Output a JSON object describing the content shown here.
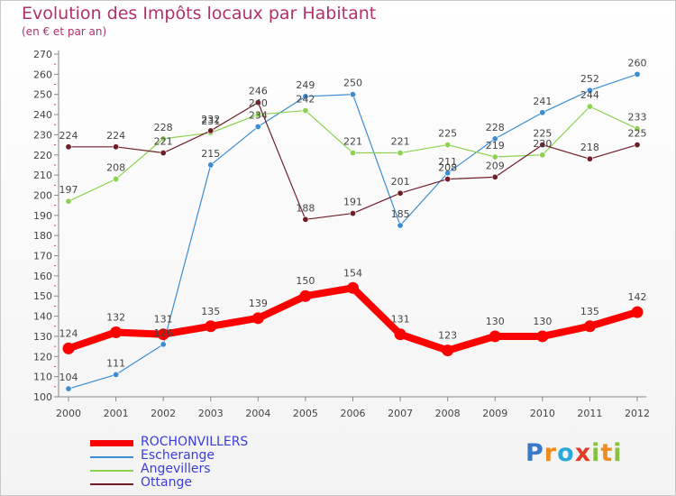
{
  "title": "Evolution des Impôts locaux par Habitant",
  "subtitle": "(en € et par an)",
  "logo": {
    "text": "Proxiti",
    "letters": [
      "P",
      "r",
      "o",
      "x",
      "i",
      "t",
      "i"
    ],
    "colors": [
      "#3a78c8",
      "#f08c1e",
      "#2ca8d8",
      "#e03c28",
      "#88c040",
      "#f08c1e",
      "#88c040"
    ]
  },
  "chart_data": {
    "type": "line",
    "title": "Evolution des Impôts locaux par Habitant",
    "subtitle": "(en € et par an)",
    "xlabel": "",
    "ylabel": "",
    "ylim": [
      100,
      270
    ],
    "ytick_step": 10,
    "grid": false,
    "legend_position": "bottom-left",
    "x": [
      "2000",
      "2001",
      "2002",
      "2003",
      "2004",
      "2005",
      "2006",
      "2007",
      "2008",
      "2009",
      "2010",
      "2011",
      "2012"
    ],
    "series": [
      {
        "name": "ROCHONVILLERS",
        "color": "#ff0000",
        "values": [
          124,
          132,
          131,
          135,
          139,
          150,
          154,
          131,
          123,
          130,
          130,
          135,
          142
        ],
        "labels": [
          "124",
          "132",
          "131",
          "135",
          "139",
          "150",
          "154",
          "131",
          "123",
          "130",
          "130",
          "135",
          "142"
        ]
      },
      {
        "name": "Escherange",
        "color": "#3c8cd2",
        "values": [
          104,
          111,
          126,
          215,
          234,
          249,
          250,
          185,
          211,
          228,
          241,
          252,
          260
        ],
        "labels": [
          "104",
          "111",
          "126",
          "215",
          "234",
          "249",
          "250",
          "185",
          "211",
          "228",
          "241",
          "252",
          "260"
        ]
      },
      {
        "name": "Angevillers",
        "color": "#8cd250",
        "values": [
          197,
          208,
          228,
          231,
          240,
          242,
          221,
          221,
          225,
          219,
          220,
          244,
          233
        ],
        "labels": [
          "197",
          "208",
          "228",
          "231",
          "240",
          "242",
          "221",
          "221",
          "225",
          "219",
          "220",
          "244",
          "233"
        ]
      },
      {
        "name": "Ottange",
        "color": "#6e1e28",
        "values": [
          224,
          224,
          221,
          232,
          246,
          188,
          191,
          201,
          208,
          209,
          225,
          218,
          225
        ],
        "labels": [
          "224",
          "224",
          "221",
          "232",
          "246",
          "188",
          "191",
          "201",
          "208",
          "209",
          "225",
          "218",
          "225"
        ]
      }
    ]
  }
}
